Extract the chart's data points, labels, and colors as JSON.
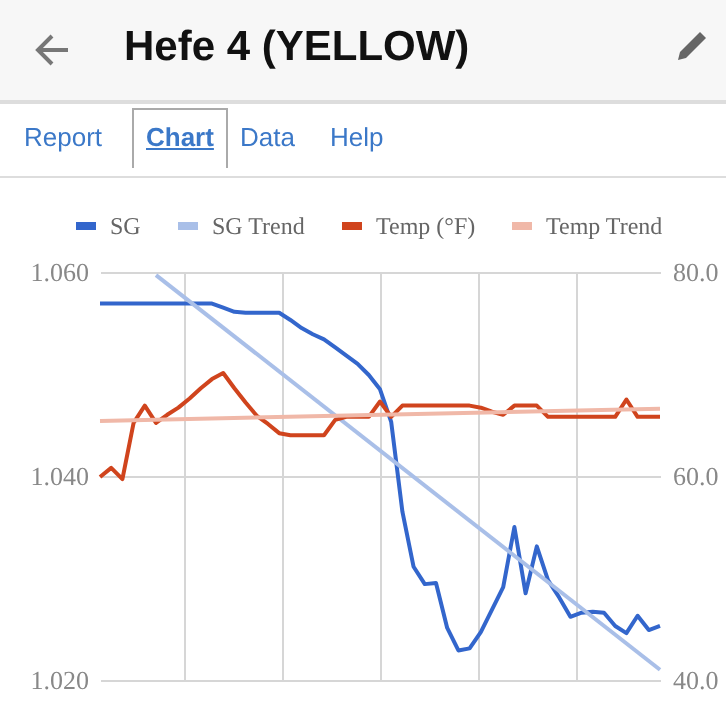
{
  "chart_data": {
    "type": "line",
    "title": "Hefe 4 (YELLOW)",
    "annotations": [
      "Report",
      "Chart",
      "Data",
      "Help"
    ],
    "categories": [
      null,
      null,
      null,
      null,
      null,
      null,
      null,
      null,
      null,
      null,
      null,
      null,
      null,
      null,
      null,
      null,
      null,
      null,
      null,
      null,
      null,
      null,
      null,
      null,
      null,
      null,
      null,
      null,
      null,
      null,
      null,
      null,
      null,
      null,
      null,
      null,
      null,
      null,
      null,
      null,
      null,
      null,
      null,
      null,
      null,
      null,
      null,
      null,
      null,
      null,
      null
    ],
    "series": [
      {
        "name": "SG",
        "color": "#3366cc",
        "axis": "y",
        "values": [
          1.0569,
          1.0569,
          1.0569,
          1.0569,
          1.0569,
          1.0569,
          1.0569,
          1.0569,
          1.0569,
          1.0569,
          1.0569,
          1.0565,
          1.0561,
          1.056,
          1.056,
          1.056,
          1.056,
          1.0553,
          1.0545,
          1.0539,
          1.0534,
          1.0526,
          1.0518,
          1.051,
          1.0499,
          1.0485,
          1.0453,
          1.0365,
          1.0311,
          1.0294,
          1.0295,
          1.0251,
          1.0229,
          1.0231,
          1.0247,
          1.0269,
          1.0291,
          1.035,
          1.0285,
          1.0331,
          1.0298,
          1.0281,
          1.0262,
          1.0266,
          1.0267,
          1.0266,
          1.0253,
          1.0246,
          1.0263,
          1.0249,
          1.0253
        ]
      },
      {
        "name": "SG Trend",
        "color": "#a9bfe8",
        "axis": "y",
        "values": [
          null,
          null,
          null,
          null,
          null,
          1.0597,
          null,
          null,
          null,
          null,
          null,
          null,
          null,
          null,
          null,
          null,
          null,
          null,
          null,
          null,
          null,
          null,
          null,
          null,
          null,
          null,
          null,
          null,
          null,
          null,
          null,
          null,
          null,
          null,
          null,
          null,
          null,
          null,
          null,
          null,
          null,
          null,
          null,
          null,
          null,
          null,
          null,
          null,
          null,
          null,
          1.021
        ]
      },
      {
        "name": "Temp (°F)",
        "color": "#d0441d",
        "axis": "y2",
        "values": [
          59.9,
          60.8,
          59.7,
          65.2,
          66.9,
          65.2,
          66.0,
          66.7,
          67.6,
          68.6,
          69.5,
          70.1,
          68.6,
          67.2,
          65.9,
          65.1,
          64.2,
          64.0,
          64.0,
          64.0,
          64.0,
          65.5,
          65.8,
          65.8,
          65.8,
          67.3,
          65.8,
          66.9,
          66.9,
          66.9,
          66.9,
          66.9,
          66.9,
          66.9,
          66.7,
          66.3,
          66.0,
          66.9,
          66.9,
          66.9,
          65.8,
          65.8,
          65.8,
          65.8,
          65.8,
          65.8,
          65.8,
          67.5,
          65.8,
          65.8,
          65.8
        ]
      },
      {
        "name": "Temp Trend",
        "color": "#f0b8a8",
        "axis": "y2",
        "values": [
          65.4,
          null,
          null,
          null,
          null,
          null,
          null,
          null,
          null,
          null,
          null,
          null,
          null,
          null,
          null,
          null,
          null,
          null,
          null,
          null,
          null,
          null,
          null,
          null,
          null,
          null,
          null,
          null,
          null,
          null,
          null,
          null,
          null,
          null,
          null,
          null,
          null,
          null,
          null,
          null,
          null,
          null,
          null,
          null,
          null,
          null,
          null,
          null,
          null,
          null,
          66.6
        ]
      }
    ],
    "ylim": [
      1.02,
      1.06
    ],
    "yticks": [
      {
        "value": 1.02,
        "label": "1.020"
      },
      {
        "value": 1.04,
        "label": "1.040"
      },
      {
        "value": 1.06,
        "label": "1.060"
      }
    ],
    "y2lim": [
      40,
      80
    ],
    "y2ticks": [
      {
        "value": 40,
        "label": "40.0"
      },
      {
        "value": 60,
        "label": "60.0"
      },
      {
        "value": 80,
        "label": "80.0"
      }
    ],
    "tick_labels": "y",
    "grid": true,
    "legend": "top",
    "marker": "none",
    "line_style": "solid"
  }
}
